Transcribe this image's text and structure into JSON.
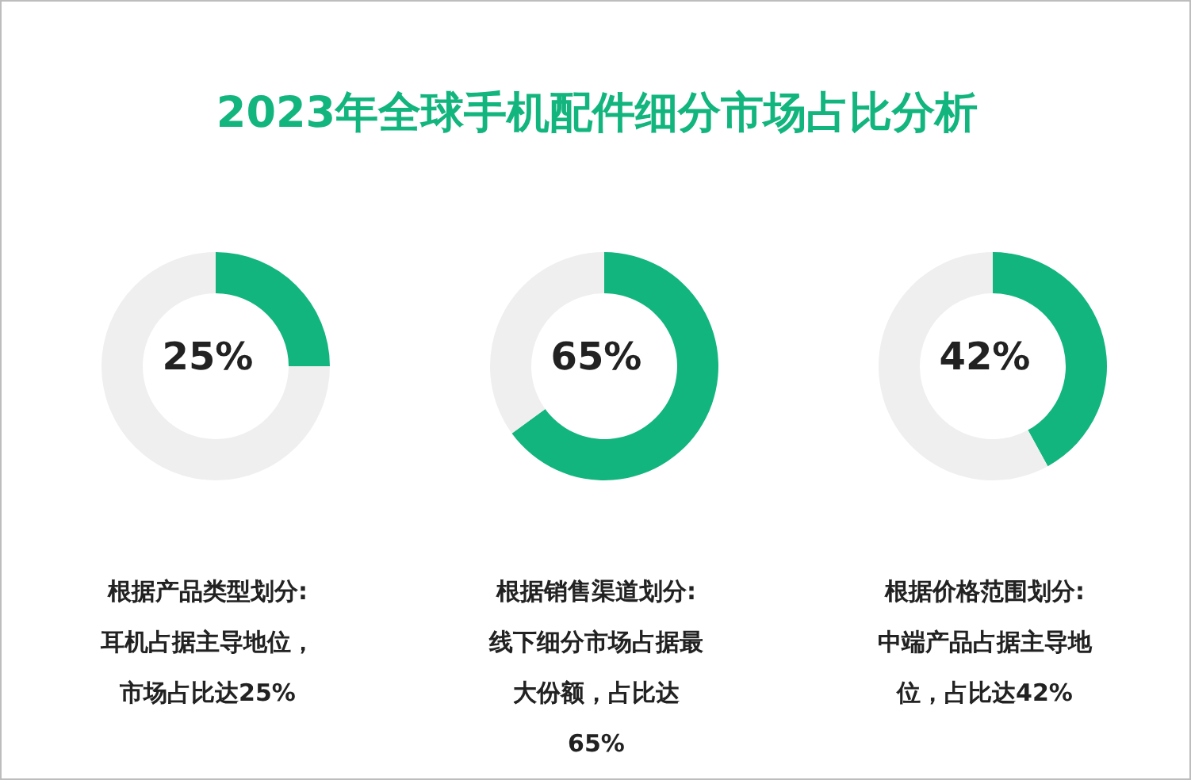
{
  "chart_data": [
    {
      "type": "donut",
      "title": "2023年全球手机配件细分市场占比分析",
      "categories": [
        null,
        null
      ],
      "values": [
        25,
        75
      ],
      "colors": [
        "#13b57f",
        "#efefef"
      ],
      "annotations": [
        "25%",
        "根据产品类型划分:",
        "耳机占据主导地位，市场占比达25%"
      ]
    },
    {
      "type": "donut",
      "categories": [
        null,
        null
      ],
      "values": [
        65,
        35
      ],
      "colors": [
        "#13b57f",
        "#efefef"
      ],
      "annotations": [
        "65%",
        "根据销售渠道划分:",
        "线下细分市场占据最大份额，占比达65%"
      ]
    },
    {
      "type": "donut",
      "categories": [
        null,
        null
      ],
      "values": [
        42,
        58
      ],
      "colors": [
        "#13b57f",
        "#efefef"
      ],
      "annotations": [
        "42%",
        "根据价格范围划分:",
        "中端产品占据主导地位，占比达42%"
      ]
    }
  ]
}
